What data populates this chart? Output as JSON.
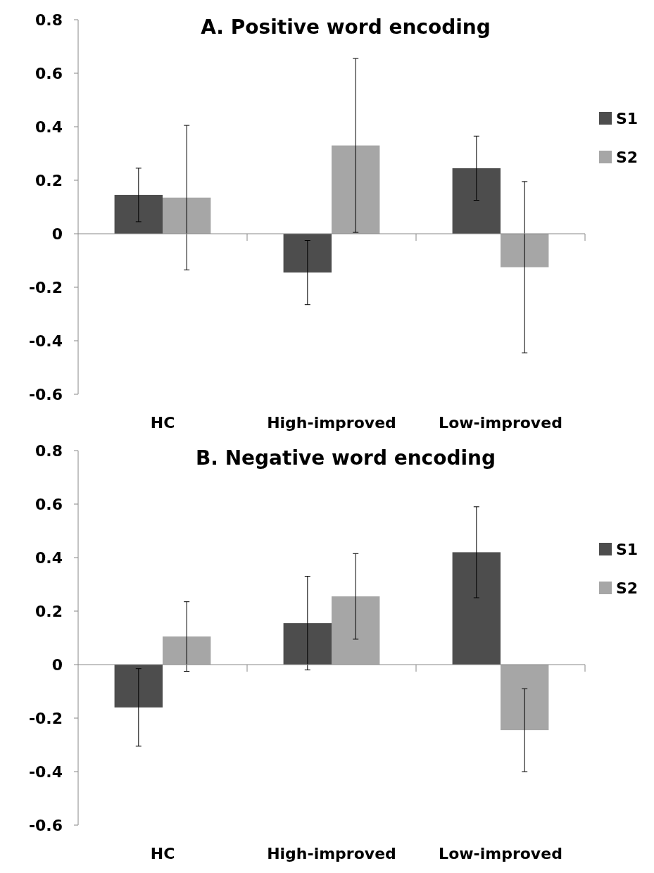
{
  "chart_data": [
    {
      "type": "bar",
      "title": "A. Positive word encoding",
      "categories": [
        "HC",
        "High-improved",
        "Low-improved"
      ],
      "series": [
        {
          "name": "S1",
          "color": "#4d4d4d",
          "values": [
            0.145,
            -0.145,
            0.245
          ],
          "errors": [
            0.1,
            0.12,
            0.12
          ]
        },
        {
          "name": "S2",
          "color": "#a6a6a6",
          "values": [
            0.135,
            0.33,
            -0.125
          ],
          "errors": [
            0.27,
            0.325,
            0.32
          ]
        }
      ],
      "ylim": [
        -0.6,
        0.8
      ],
      "yticks": [
        -0.6,
        -0.4,
        -0.2,
        0,
        0.2,
        0.4,
        0.6,
        0.8
      ],
      "legend": "right"
    },
    {
      "type": "bar",
      "title": "B. Negative word encoding",
      "categories": [
        "HC",
        "High-improved",
        "Low-improved"
      ],
      "series": [
        {
          "name": "S1",
          "color": "#4d4d4d",
          "values": [
            -0.16,
            0.155,
            0.42
          ],
          "errors": [
            0.145,
            0.175,
            0.17
          ]
        },
        {
          "name": "S2",
          "color": "#a6a6a6",
          "values": [
            0.105,
            0.255,
            -0.245
          ],
          "errors": [
            0.13,
            0.16,
            0.155
          ]
        }
      ],
      "ylim": [
        -0.6,
        0.8
      ],
      "yticks": [
        -0.6,
        -0.4,
        -0.2,
        0,
        0.2,
        0.4,
        0.6,
        0.8
      ],
      "legend": "right"
    }
  ]
}
